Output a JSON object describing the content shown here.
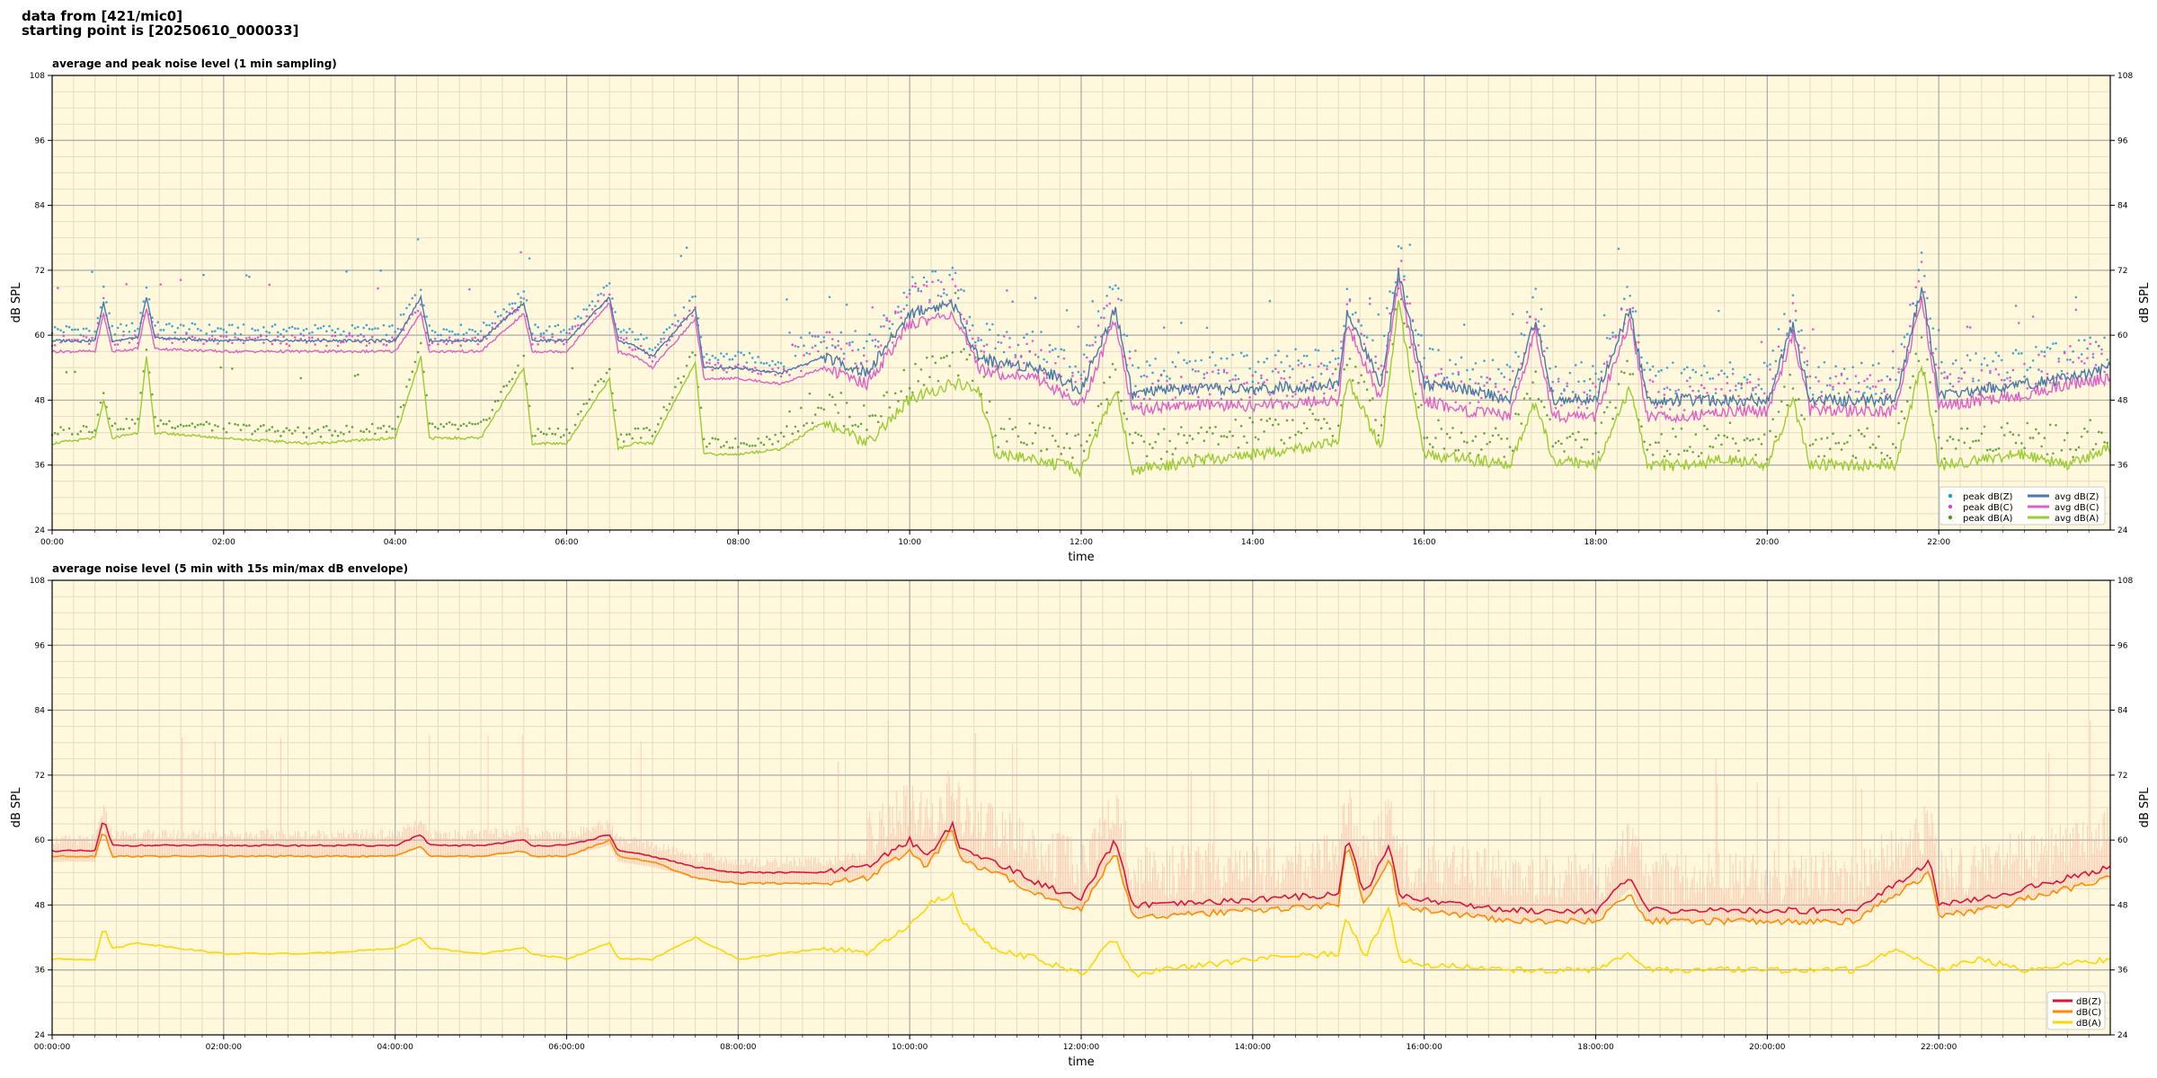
{
  "header": {
    "line1": "data from [421/mic0]",
    "line2": "starting point is [20250610_000033]"
  },
  "colors": {
    "plot_bg": "#fff8dc",
    "grid_major": "#a9a9a9",
    "grid_minor": "#e6dcc0",
    "peak_z": "#1f9ad6",
    "peak_c": "#e040d0",
    "peak_a": "#4a9a2a",
    "avg_z": "#4a7aa8",
    "avg_c": "#e060c8",
    "avg_a": "#9acd32",
    "db_z": "#dc143c",
    "db_c": "#ff8c00",
    "db_a": "#ffd700",
    "envelope": "#f4b6a0"
  },
  "chart_data": [
    {
      "type": "line",
      "title": "average and peak noise level (1 min sampling)",
      "xlabel": "time",
      "ylabel": "dB SPL",
      "xlim": [
        0,
        24
      ],
      "ylim": [
        24,
        108
      ],
      "yticks": [
        "24",
        "36",
        "48",
        "60",
        "72",
        "84",
        "96",
        "108"
      ],
      "xticks": [
        "00:00",
        "02:00",
        "04:00",
        "06:00",
        "08:00",
        "10:00",
        "12:00",
        "14:00",
        "16:00",
        "18:00",
        "20:00",
        "22:00"
      ],
      "grid": true,
      "legend_position": "bottom-right",
      "legend": [
        "peak dB(Z)",
        "peak dB(C)",
        "peak dB(A)",
        "avg dB(Z)",
        "avg dB(C)",
        "avg dB(A)"
      ],
      "x": [
        0,
        0.5,
        0.6,
        0.7,
        1,
        1.1,
        1.2,
        2,
        3,
        4,
        4.3,
        4.4,
        5,
        5.5,
        5.6,
        6,
        6.5,
        6.6,
        6.8,
        7,
        7.5,
        7.6,
        8,
        8.5,
        9,
        9.5,
        10,
        10.5,
        10.8,
        11,
        11.5,
        12,
        12.4,
        12.6,
        13,
        14,
        15,
        15.1,
        15.5,
        15.7,
        16,
        16.5,
        17,
        17.3,
        17.5,
        18,
        18.4,
        18.6,
        19,
        19.5,
        20,
        20.3,
        20.5,
        21,
        21.5,
        21.8,
        22,
        22.5,
        23,
        23.5,
        24
      ],
      "series": [
        {
          "name": "avg dB(Z)",
          "values": [
            59,
            59,
            66,
            59,
            59.5,
            67,
            59.5,
            59,
            59,
            59,
            67,
            59,
            59,
            66,
            59,
            59,
            67,
            59,
            58,
            56,
            65,
            54,
            54,
            53,
            56,
            53,
            64,
            66,
            56,
            55,
            54,
            50,
            65,
            49,
            50,
            50,
            51,
            64,
            51,
            72,
            51,
            50,
            48,
            63,
            48,
            48,
            65,
            48,
            48,
            48,
            48,
            62,
            48,
            48,
            48,
            69,
            49,
            50,
            51,
            52,
            54
          ]
        },
        {
          "name": "avg dB(C)",
          "values": [
            57,
            57,
            64,
            57,
            57.5,
            65,
            57.5,
            57,
            57,
            57,
            64,
            57,
            57,
            64,
            57,
            57,
            66,
            57,
            56,
            54,
            63,
            52,
            52,
            51,
            54,
            51,
            62,
            64,
            54,
            53,
            52,
            47,
            63,
            46,
            47,
            47,
            48,
            62,
            48,
            70,
            48,
            46,
            45,
            61,
            45,
            45,
            63,
            45,
            45,
            46,
            46,
            60,
            46,
            46,
            46,
            67,
            47,
            48,
            49,
            51,
            52
          ]
        },
        {
          "name": "avg dB(A)",
          "values": [
            40,
            41,
            48,
            41,
            42,
            56,
            42,
            41,
            40,
            41,
            56,
            41,
            41,
            54,
            40,
            40,
            52,
            39,
            40,
            40,
            55,
            38,
            38,
            39,
            44,
            40,
            48,
            51,
            50,
            38,
            37,
            35,
            50,
            35,
            36,
            38,
            40,
            52,
            39,
            66,
            38,
            37,
            36,
            48,
            37,
            36,
            50,
            36,
            36,
            37,
            36,
            48,
            36,
            36,
            36,
            55,
            36,
            37,
            38,
            36,
            39
          ]
        }
      ]
    },
    {
      "type": "line",
      "title": "average noise level (5 min with 15s min/max dB envelope)",
      "xlabel": "time",
      "ylabel": "dB SPL",
      "xlim": [
        0,
        24
      ],
      "ylim": [
        24,
        108
      ],
      "yticks": [
        "24",
        "36",
        "48",
        "60",
        "72",
        "84",
        "96",
        "108"
      ],
      "xticks": [
        "00:00:00",
        "02:00:00",
        "04:00:00",
        "06:00:00",
        "08:00:00",
        "10:00:00",
        "12:00:00",
        "14:00:00",
        "16:00:00",
        "18:00:00",
        "20:00:00",
        "22:00:00"
      ],
      "grid": true,
      "legend_position": "bottom-right",
      "legend": [
        "dB(Z)",
        "dB(C)",
        "dB(A)"
      ],
      "x": [
        0,
        0.5,
        0.6,
        0.7,
        1,
        2,
        3,
        4,
        4.3,
        4.4,
        5,
        5.5,
        5.6,
        6,
        6.5,
        6.6,
        7,
        7.5,
        8,
        9,
        9.5,
        10,
        10.2,
        10.5,
        10.6,
        11,
        11.5,
        12,
        12.4,
        12.6,
        13,
        14,
        15,
        15.1,
        15.3,
        15.6,
        15.7,
        16,
        17,
        18,
        18.4,
        18.6,
        19,
        20,
        21,
        21.5,
        21.9,
        22,
        22.5,
        23,
        24
      ],
      "series": [
        {
          "name": "dB(Z)",
          "values": [
            58,
            58,
            64,
            59,
            59,
            59,
            59,
            59,
            61,
            59,
            59,
            60,
            59,
            59,
            61,
            58,
            57,
            55,
            54,
            54,
            55,
            60,
            57,
            63,
            58,
            56,
            52,
            49,
            60,
            48,
            48,
            49,
            50,
            61,
            50,
            59,
            50,
            49,
            47,
            47,
            53,
            47,
            47,
            47,
            47,
            52,
            56,
            48,
            49,
            51,
            55
          ]
        },
        {
          "name": "dB(C)",
          "values": [
            57,
            57,
            62,
            57,
            57,
            57,
            57,
            57,
            59,
            57,
            57,
            58,
            57,
            57,
            60,
            57,
            56,
            53,
            52,
            52,
            53,
            58,
            55,
            62,
            56,
            54,
            50,
            47,
            58,
            46,
            46,
            47,
            48,
            60,
            48,
            57,
            48,
            47,
            45,
            45,
            50,
            45,
            45,
            45,
            45,
            50,
            54,
            46,
            47,
            49,
            53
          ]
        },
        {
          "name": "dB(A)",
          "values": [
            38,
            38,
            44,
            40,
            41,
            39,
            39,
            40,
            42,
            40,
            39,
            40,
            39,
            38,
            41,
            38,
            38,
            42,
            38,
            40,
            39,
            44,
            48,
            50,
            45,
            40,
            38,
            35,
            42,
            35,
            36,
            38,
            39,
            46,
            38,
            48,
            38,
            37,
            36,
            36,
            39,
            36,
            36,
            36,
            36,
            40,
            37,
            36,
            38,
            36,
            38
          ]
        }
      ]
    }
  ]
}
